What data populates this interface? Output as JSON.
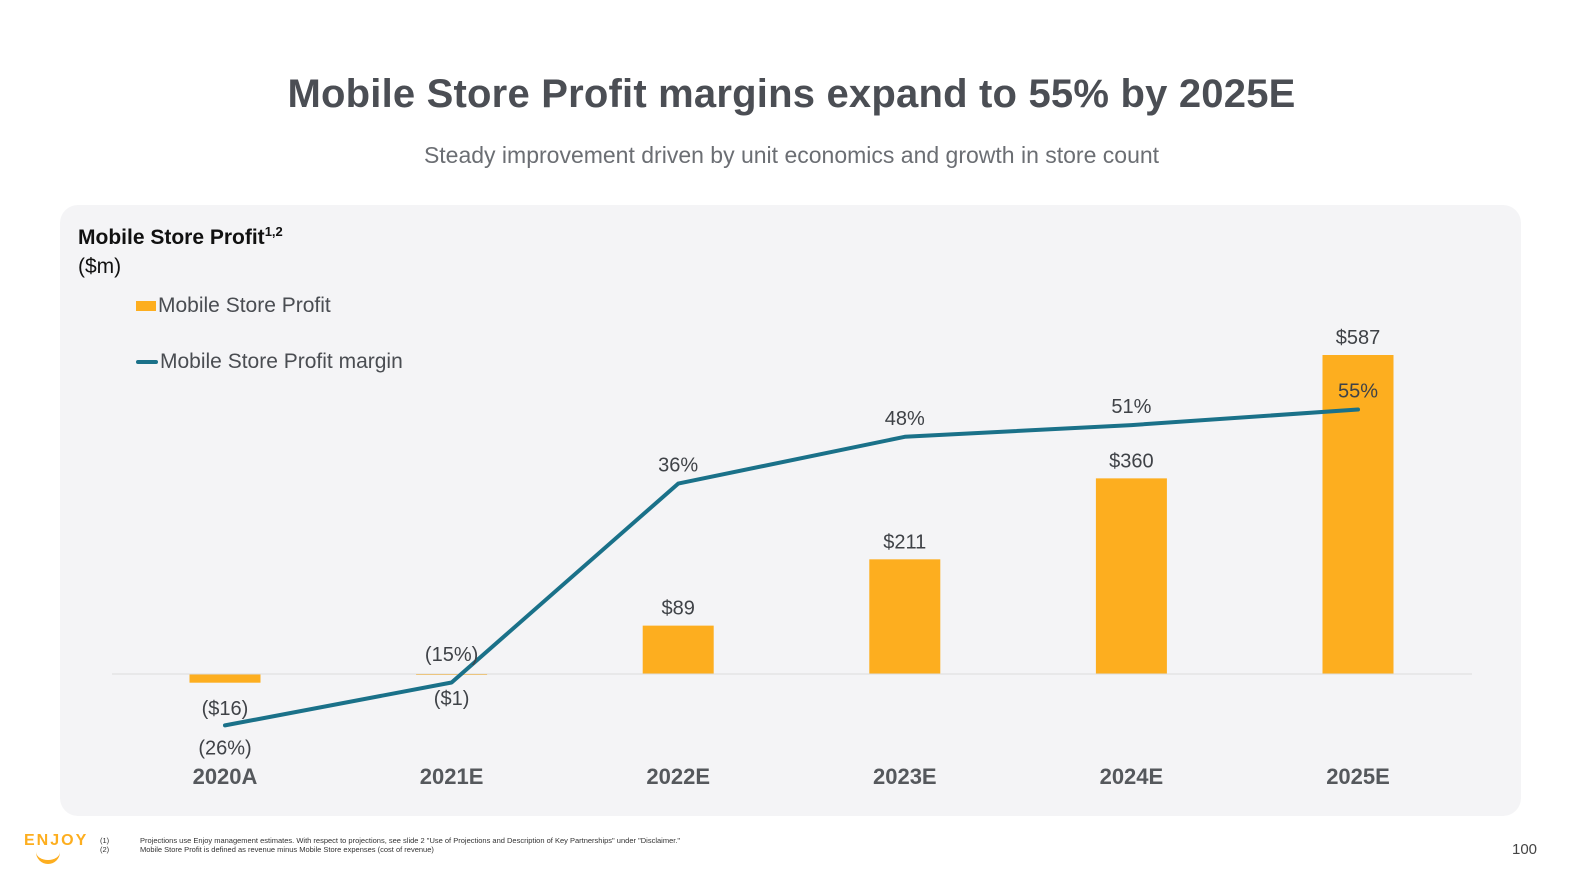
{
  "page": {
    "title": "Mobile Store Profit margins expand to 55% by 2025E",
    "subtitle": "Steady improvement driven by unit economics and growth in store count",
    "page_number": "100"
  },
  "chart_panel": {
    "title": "Mobile Store Profit",
    "title_superscript": "1,2",
    "units": "($m)"
  },
  "colors": {
    "bar": "#fdae1f",
    "line": "#1a7189",
    "baseline": "#dcdcdc"
  },
  "chart_data": {
    "type": "bar",
    "title": "Mobile Store Profit",
    "ylabel": "($m)",
    "categories": [
      "2020A",
      "2021E",
      "2022E",
      "2023E",
      "2024E",
      "2025E"
    ],
    "series": [
      {
        "name": "Mobile Store Profit",
        "type": "bar",
        "values": [
          -16,
          -1,
          89,
          211,
          360,
          587
        ],
        "labels": [
          "($16)",
          "($1)",
          "$89",
          "$211",
          "$360",
          "$587"
        ]
      },
      {
        "name": "Mobile Store Profit margin",
        "type": "line",
        "values": [
          -26,
          -15,
          36,
          48,
          51,
          55
        ],
        "unit": "%",
        "labels": [
          "(26%)",
          "(15%)",
          "36%",
          "48%",
          "51%",
          "55%"
        ]
      }
    ],
    "legend": [
      "Mobile Store Profit",
      "Mobile Store Profit margin"
    ],
    "legend_position": "top-left",
    "grid": false
  },
  "footer": {
    "logo_text": "ENJOY",
    "footnotes": [
      {
        "num": "(1)",
        "text": "Projections use Enjoy management estimates. With respect to projections, see slide 2 \"Use of Projections and Description of Key Partnerships\" under \"Disclaimer.\""
      },
      {
        "num": "(2)",
        "text": "Mobile Store Profit is defined as revenue minus Mobile Store expenses (cost of revenue)"
      }
    ]
  }
}
